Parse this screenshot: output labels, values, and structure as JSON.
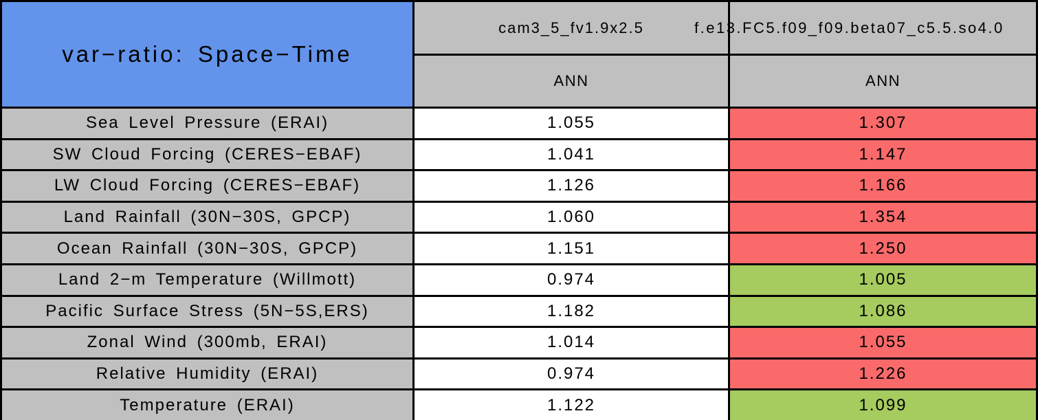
{
  "chart_data": {
    "type": "table",
    "title": "var−ratio: Space−Time",
    "column_groups": [
      "cam3_5_fv1.9x2.5",
      "f.e13.FC5.f09_f09.beta07_c5.5.so4.0"
    ],
    "seasons": [
      "ANN",
      "ANN"
    ],
    "rows": [
      {
        "label": "Sea Level Pressure (ERAI)",
        "values": [
          "1.055",
          "1.307"
        ],
        "statuses": [
          "neutral",
          "worse"
        ]
      },
      {
        "label": "SW Cloud Forcing (CERES−EBAF)",
        "values": [
          "1.041",
          "1.147"
        ],
        "statuses": [
          "neutral",
          "worse"
        ]
      },
      {
        "label": "LW Cloud Forcing (CERES−EBAF)",
        "values": [
          "1.126",
          "1.166"
        ],
        "statuses": [
          "neutral",
          "worse"
        ]
      },
      {
        "label": "Land Rainfall (30N−30S, GPCP)",
        "values": [
          "1.060",
          "1.354"
        ],
        "statuses": [
          "neutral",
          "worse"
        ]
      },
      {
        "label": "Ocean Rainfall (30N−30S, GPCP)",
        "values": [
          "1.151",
          "1.250"
        ],
        "statuses": [
          "neutral",
          "worse"
        ]
      },
      {
        "label": "Land 2−m Temperature (Willmott)",
        "values": [
          "0.974",
          "1.005"
        ],
        "statuses": [
          "neutral",
          "better"
        ]
      },
      {
        "label": "Pacific Surface Stress (5N−5S,ERS)",
        "values": [
          "1.182",
          "1.086"
        ],
        "statuses": [
          "neutral",
          "better"
        ]
      },
      {
        "label": "Zonal Wind (300mb, ERAI)",
        "values": [
          "1.014",
          "1.055"
        ],
        "statuses": [
          "neutral",
          "worse"
        ]
      },
      {
        "label": "Relative Humidity (ERAI)",
        "values": [
          "0.974",
          "1.226"
        ],
        "statuses": [
          "neutral",
          "worse"
        ]
      },
      {
        "label": "Temperature (ERAI)",
        "values": [
          "1.122",
          "1.099"
        ],
        "statuses": [
          "neutral",
          "better"
        ]
      }
    ]
  },
  "colors": {
    "title_blue": "#6393EB",
    "header_gray": "#C0C0C0",
    "worse_red": "#FA6A6A",
    "better_green": "#A6CB5E",
    "neutral_white": "#FFFFFF",
    "border_black": "#000000"
  }
}
